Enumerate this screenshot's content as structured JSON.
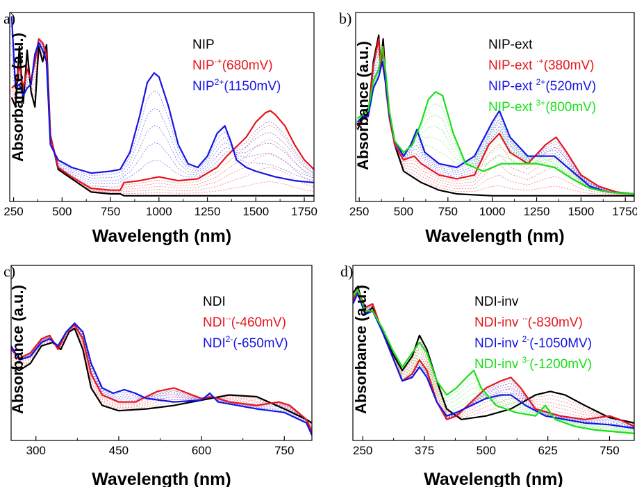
{
  "figure": {
    "colors": {
      "neutral": "#000000",
      "cation": "#e8141b",
      "dication": "#1414e6",
      "trication": "#19e019",
      "axis": "#000000"
    },
    "panels": [
      {
        "id": "a",
        "letter": "a)",
        "xlabel": "Wavelength (nm)",
        "ylabel": "Absorbance (a.u.)",
        "legend": [
          {
            "text": "NIP",
            "sup": "",
            "suffix": "",
            "color": "#000000"
          },
          {
            "text": "NIP",
            "sup": "·+",
            "suffix": "(680mV)",
            "color": "#e8141b"
          },
          {
            "text": "NIP",
            "sup": "2+",
            "suffix": "(1150mV)",
            "color": "#1414e6"
          }
        ]
      },
      {
        "id": "b",
        "letter": "b)",
        "xlabel": "Wavelength (nm)",
        "ylabel": "Absorbance (a.u.)",
        "legend": [
          {
            "text": "NIP-ext",
            "sup": "",
            "suffix": "",
            "color": "#000000"
          },
          {
            "text": "NIP-ext ",
            "sup": "·+",
            "suffix": "(380mV)",
            "color": "#e8141b"
          },
          {
            "text": "NIP-ext ",
            "sup": "2+",
            "suffix": "(520mV)",
            "color": "#1414e6"
          },
          {
            "text": "NIP-ext ",
            "sup": "3+",
            "suffix": "(800mV)",
            "color": "#19e019"
          }
        ]
      },
      {
        "id": "c",
        "letter": "c)",
        "xlabel": "Wavelength (nm)",
        "ylabel": "Absorbance (a.u.)",
        "legend": [
          {
            "text": "NDI",
            "sup": "",
            "suffix": "",
            "color": "#000000"
          },
          {
            "text": "NDI",
            "sup": "·-",
            "suffix": "(-460mV)",
            "color": "#e8141b"
          },
          {
            "text": "NDI",
            "sup": "2-",
            "suffix": "(-650mV)",
            "color": "#1414e6"
          }
        ]
      },
      {
        "id": "d",
        "letter": "d)",
        "xlabel": "Wavelength (nm)",
        "ylabel": "Absorbance (a.u.)",
        "legend": [
          {
            "text": "NDI-inv",
            "sup": "",
            "suffix": "",
            "color": "#000000"
          },
          {
            "text": "NDI-inv ",
            "sup": "·-",
            "suffix": "(-830mV)",
            "color": "#e8141b"
          },
          {
            "text": "NDI-inv ",
            "sup": "2-",
            "suffix": "(-1050MV)",
            "color": "#1414e6"
          },
          {
            "text": "NDI-inv ",
            "sup": "3-",
            "suffix": "(-1200mV)",
            "color": "#19e019"
          }
        ]
      }
    ]
  },
  "chart_data": [
    {
      "panel": "a",
      "type": "line",
      "xlabel": "Wavelength (nm)",
      "ylabel": "Absorbance (a.u.)",
      "xlim": [
        230,
        1800
      ],
      "ylim": [
        0,
        1
      ],
      "xticks": [
        250,
        500,
        750,
        1000,
        1250,
        1500,
        1750
      ],
      "yticks_shown": false,
      "series": [
        {
          "name": "NIP",
          "color": "#000000",
          "x": [
            240,
            260,
            280,
            300,
            320,
            340,
            360,
            380,
            400,
            420,
            440,
            480,
            550,
            650,
            750,
            800,
            820,
            900,
            1000,
            1100,
            1200,
            1300,
            1400,
            1500,
            1600,
            1700,
            1800
          ],
          "y": [
            0.55,
            0.5,
            0.82,
            0.52,
            0.8,
            0.58,
            0.5,
            0.82,
            0.74,
            0.83,
            0.35,
            0.17,
            0.12,
            0.05,
            0.04,
            0.04,
            0.03,
            0.03,
            0.03,
            0.03,
            0.03,
            0.03,
            0.03,
            0.03,
            0.03,
            0.03,
            0.03
          ]
        },
        {
          "name": "NIP·+(680mV)",
          "color": "#e8141b",
          "x": [
            240,
            260,
            280,
            300,
            320,
            340,
            360,
            380,
            400,
            420,
            440,
            480,
            550,
            650,
            750,
            800,
            820,
            900,
            1000,
            1100,
            1200,
            1300,
            1350,
            1400,
            1450,
            1500,
            1550,
            1575,
            1600,
            1650,
            1700,
            1750,
            1800
          ],
          "y": [
            0.6,
            0.62,
            0.72,
            0.6,
            0.7,
            0.64,
            0.74,
            0.86,
            0.84,
            0.78,
            0.35,
            0.18,
            0.13,
            0.07,
            0.06,
            0.06,
            0.1,
            0.11,
            0.13,
            0.11,
            0.12,
            0.18,
            0.24,
            0.29,
            0.34,
            0.42,
            0.47,
            0.48,
            0.46,
            0.4,
            0.3,
            0.22,
            0.17
          ]
        },
        {
          "name": "NIP2+(1150mV)",
          "color": "#1414e6",
          "x": [
            240,
            260,
            280,
            300,
            320,
            340,
            360,
            380,
            400,
            420,
            440,
            480,
            550,
            650,
            750,
            800,
            850,
            900,
            940,
            975,
            1000,
            1050,
            1100,
            1150,
            1200,
            1250,
            1300,
            1340,
            1370,
            1400,
            1450,
            1500,
            1600,
            1700,
            1800
          ],
          "y": [
            0.98,
            0.6,
            0.62,
            0.56,
            0.6,
            0.62,
            0.78,
            0.84,
            0.8,
            0.74,
            0.3,
            0.22,
            0.18,
            0.15,
            0.16,
            0.17,
            0.26,
            0.45,
            0.63,
            0.68,
            0.66,
            0.5,
            0.3,
            0.2,
            0.18,
            0.24,
            0.36,
            0.4,
            0.32,
            0.22,
            0.18,
            0.16,
            0.13,
            0.11,
            0.1
          ]
        }
      ]
    },
    {
      "panel": "b",
      "type": "line",
      "xlabel": "Wavelength (nm)",
      "ylabel": "Absorbance (a.u.)",
      "xlim": [
        230,
        1800
      ],
      "ylim": [
        0,
        1
      ],
      "xticks": [
        250,
        500,
        750,
        1000,
        1250,
        1500,
        1750
      ],
      "yticks_shown": false,
      "series": [
        {
          "name": "NIP-ext",
          "color": "#000000",
          "x": [
            240,
            270,
            300,
            330,
            360,
            370,
            385,
            400,
            420,
            450,
            500,
            600,
            700,
            800,
            1000,
            1200,
            1400,
            1600,
            1800
          ],
          "y": [
            0.38,
            0.44,
            0.45,
            0.74,
            0.88,
            0.72,
            0.86,
            0.64,
            0.46,
            0.3,
            0.16,
            0.1,
            0.06,
            0.04,
            0.03,
            0.03,
            0.03,
            0.03,
            0.03
          ]
        },
        {
          "name": "NIP-ext ·+(380mV)",
          "color": "#e8141b",
          "x": [
            240,
            270,
            300,
            330,
            360,
            370,
            385,
            400,
            420,
            450,
            500,
            560,
            600,
            700,
            800,
            900,
            980,
            1040,
            1100,
            1200,
            1300,
            1360,
            1420,
            1500,
            1600,
            1700,
            1800
          ],
          "y": [
            0.4,
            0.45,
            0.45,
            0.72,
            0.86,
            0.7,
            0.82,
            0.6,
            0.44,
            0.3,
            0.22,
            0.24,
            0.2,
            0.14,
            0.12,
            0.14,
            0.3,
            0.36,
            0.26,
            0.2,
            0.3,
            0.34,
            0.26,
            0.14,
            0.08,
            0.05,
            0.04
          ]
        },
        {
          "name": "NIP-ext 2+(520mV)",
          "color": "#1414e6",
          "x": [
            240,
            270,
            300,
            330,
            360,
            380,
            400,
            420,
            450,
            500,
            540,
            575,
            620,
            700,
            800,
            900,
            1000,
            1040,
            1100,
            1200,
            1300,
            1350,
            1450,
            1550,
            1650,
            1800
          ],
          "y": [
            0.42,
            0.45,
            0.45,
            0.6,
            0.66,
            0.74,
            0.62,
            0.46,
            0.32,
            0.24,
            0.3,
            0.38,
            0.26,
            0.2,
            0.18,
            0.24,
            0.42,
            0.48,
            0.34,
            0.24,
            0.24,
            0.24,
            0.16,
            0.08,
            0.05,
            0.04
          ]
        },
        {
          "name": "NIP-ext 3+(800mV)",
          "color": "#19e019",
          "x": [
            240,
            270,
            300,
            330,
            360,
            380,
            400,
            420,
            450,
            500,
            550,
            600,
            640,
            680,
            720,
            780,
            850,
            950,
            1050,
            1150,
            1250,
            1350,
            1450,
            1550,
            1650,
            1800
          ],
          "y": [
            0.44,
            0.46,
            0.48,
            0.64,
            0.7,
            0.82,
            0.68,
            0.48,
            0.32,
            0.26,
            0.3,
            0.42,
            0.54,
            0.58,
            0.56,
            0.36,
            0.2,
            0.16,
            0.2,
            0.2,
            0.2,
            0.18,
            0.12,
            0.07,
            0.05,
            0.04
          ]
        }
      ]
    },
    {
      "panel": "c",
      "type": "line",
      "xlabel": "Wavelength (nm)",
      "ylabel": "Absorbance (a.u.)",
      "xlim": [
        255,
        800
      ],
      "ylim": [
        0,
        1
      ],
      "xticks": [
        300,
        450,
        600,
        750
      ],
      "yticks_shown": false,
      "series": [
        {
          "name": "NDI",
          "color": "#000000",
          "x": [
            255,
            270,
            290,
            310,
            330,
            345,
            360,
            370,
            385,
            400,
            420,
            450,
            500,
            550,
            600,
            650,
            700,
            750,
            790,
            800
          ],
          "y": [
            0.42,
            0.4,
            0.44,
            0.54,
            0.56,
            0.52,
            0.62,
            0.64,
            0.52,
            0.3,
            0.2,
            0.17,
            0.18,
            0.2,
            0.23,
            0.26,
            0.25,
            0.18,
            0.12,
            0.1
          ]
        },
        {
          "name": "NDI·-(-460mV)",
          "color": "#e8141b",
          "x": [
            255,
            270,
            290,
            310,
            325,
            340,
            355,
            370,
            385,
            400,
            420,
            450,
            480,
            520,
            550,
            575,
            600,
            620,
            650,
            700,
            740,
            760,
            790,
            800
          ],
          "y": [
            0.52,
            0.47,
            0.5,
            0.58,
            0.6,
            0.52,
            0.62,
            0.66,
            0.58,
            0.38,
            0.26,
            0.22,
            0.22,
            0.28,
            0.3,
            0.27,
            0.24,
            0.25,
            0.22,
            0.2,
            0.22,
            0.2,
            0.12,
            0.05
          ]
        },
        {
          "name": "NDI2-(-650mV)",
          "color": "#1414e6",
          "x": [
            255,
            270,
            290,
            310,
            325,
            340,
            355,
            370,
            385,
            400,
            420,
            440,
            460,
            480,
            500,
            550,
            600,
            615,
            630,
            700,
            750,
            790,
            800
          ],
          "y": [
            0.54,
            0.46,
            0.48,
            0.56,
            0.58,
            0.54,
            0.62,
            0.67,
            0.62,
            0.44,
            0.3,
            0.27,
            0.29,
            0.27,
            0.24,
            0.22,
            0.23,
            0.27,
            0.22,
            0.18,
            0.16,
            0.1,
            0.03
          ]
        }
      ]
    },
    {
      "panel": "d",
      "type": "line",
      "xlabel": "Wavelength (nm)",
      "ylabel": "Absorbance (a.u.)",
      "xlim": [
        230,
        800
      ],
      "ylim": [
        0,
        1
      ],
      "xticks": [
        250,
        375,
        500,
        625,
        750
      ],
      "yticks_shown": false,
      "series": [
        {
          "name": "NDI-inv",
          "color": "#000000",
          "x": [
            230,
            240,
            255,
            270,
            290,
            310,
            330,
            350,
            365,
            380,
            400,
            420,
            450,
            500,
            550,
            600,
            630,
            660,
            700,
            750,
            800
          ],
          "y": [
            0.84,
            0.88,
            0.72,
            0.76,
            0.62,
            0.5,
            0.4,
            0.48,
            0.6,
            0.52,
            0.34,
            0.18,
            0.12,
            0.14,
            0.18,
            0.26,
            0.28,
            0.26,
            0.2,
            0.13,
            0.1
          ]
        },
        {
          "name": "NDI-inv ·-(-830mV)",
          "color": "#e8141b",
          "x": [
            230,
            240,
            255,
            270,
            290,
            310,
            330,
            350,
            365,
            380,
            400,
            420,
            440,
            470,
            500,
            530,
            550,
            570,
            600,
            650,
            700,
            750,
            770,
            800
          ],
          "y": [
            0.8,
            0.86,
            0.76,
            0.78,
            0.62,
            0.48,
            0.34,
            0.38,
            0.46,
            0.4,
            0.22,
            0.12,
            0.14,
            0.22,
            0.3,
            0.34,
            0.36,
            0.3,
            0.18,
            0.14,
            0.12,
            0.14,
            0.12,
            0.08
          ]
        },
        {
          "name": "NDI-inv 2-(-1050MV)",
          "color": "#1414e6",
          "x": [
            230,
            240,
            255,
            270,
            290,
            310,
            330,
            350,
            365,
            380,
            400,
            420,
            440,
            470,
            500,
            530,
            550,
            580,
            620,
            660,
            700,
            750,
            800
          ],
          "y": [
            0.78,
            0.84,
            0.72,
            0.74,
            0.62,
            0.48,
            0.34,
            0.36,
            0.42,
            0.36,
            0.22,
            0.14,
            0.16,
            0.2,
            0.24,
            0.26,
            0.26,
            0.2,
            0.14,
            0.12,
            0.1,
            0.09,
            0.07
          ]
        },
        {
          "name": "NDI-inv 3-(-1200mV)",
          "color": "#19e019",
          "x": [
            230,
            240,
            255,
            270,
            290,
            310,
            330,
            350,
            365,
            380,
            400,
            420,
            440,
            460,
            475,
            490,
            520,
            560,
            600,
            620,
            640,
            680,
            720,
            760,
            800
          ],
          "y": [
            0.82,
            0.86,
            0.74,
            0.74,
            0.64,
            0.52,
            0.42,
            0.5,
            0.56,
            0.5,
            0.34,
            0.26,
            0.3,
            0.36,
            0.4,
            0.3,
            0.2,
            0.16,
            0.14,
            0.2,
            0.12,
            0.08,
            0.06,
            0.05,
            0.04
          ]
        }
      ]
    }
  ]
}
